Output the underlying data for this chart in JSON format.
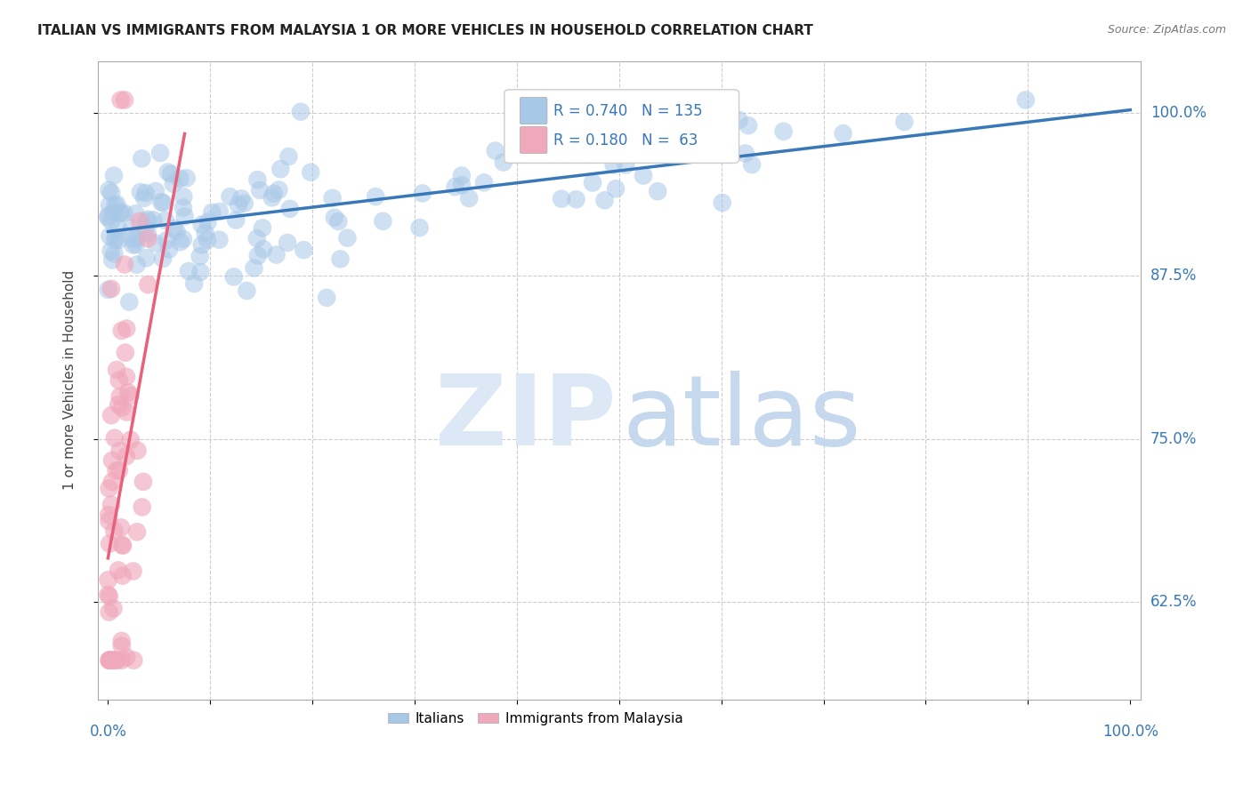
{
  "title": "ITALIAN VS IMMIGRANTS FROM MALAYSIA 1 OR MORE VEHICLES IN HOUSEHOLD CORRELATION CHART",
  "source": "Source: ZipAtlas.com",
  "ylabel": "1 or more Vehicles in Household",
  "legend_italian": "Italians",
  "legend_malaysia": "Immigrants from Malaysia",
  "R_italian": 0.74,
  "N_italian": 135,
  "R_malaysia": 0.18,
  "N_malaysia": 63,
  "italian_color": "#a8c8e8",
  "malaysia_color": "#f0a8bc",
  "italian_line_color": "#3878b8",
  "malaysia_line_color": "#e8607a",
  "ytick_values": [
    0.625,
    0.75,
    0.875,
    1.0
  ],
  "ytick_labels": [
    "62.5%",
    "75.0%",
    "87.5%",
    "100.0%"
  ],
  "xlim": [
    0.0,
    1.0
  ],
  "ylim": [
    0.55,
    1.04
  ],
  "background_color": "#ffffff",
  "grid_color": "#cccccc",
  "right_label_color": "#3878b8",
  "watermark_zip_color": "#dce8f5",
  "watermark_atlas_color": "#c5d8ee"
}
